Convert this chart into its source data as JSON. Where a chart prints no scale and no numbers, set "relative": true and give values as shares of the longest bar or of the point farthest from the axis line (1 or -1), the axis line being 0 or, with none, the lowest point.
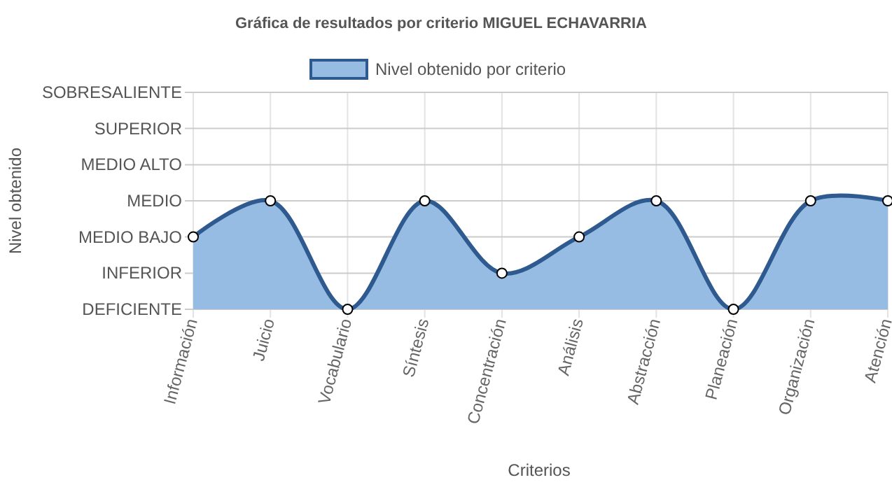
{
  "chart_data": {
    "type": "area",
    "title": "Gráfica de resultados por criterio MIGUEL ECHAVARRIA",
    "xlabel": "Criterios",
    "categories": [
      "Información",
      "Juicio",
      "Vocabulario",
      "Síntesis",
      "Concentración",
      "Análisis",
      "Abstracción",
      "Planeación",
      "Organización",
      "Atención"
    ],
    "relative": true,
    "series": [
      {
        "name": "Nivel obtenido por criterio",
        "color": "#2e5a8f",
        "values": [
          0.667,
          1,
          0,
          1,
          0.333,
          0.667,
          1,
          0,
          1,
          1
        ]
      }
    ],
    "ref_lines": [
      {
        "axis": "y",
        "value": 2,
        "label": "SOBRESALIENTE",
        "color": "#cccccc"
      },
      {
        "axis": "y",
        "value": 1.667,
        "label": "SUPERIOR",
        "color": "#cccccc"
      },
      {
        "axis": "y",
        "value": 1.333,
        "label": "MEDIO ALTO",
        "color": "#cccccc"
      },
      {
        "axis": "y",
        "value": 1,
        "label": "MEDIO",
        "color": "#cccccc"
      },
      {
        "axis": "y",
        "value": 0.667,
        "label": "MEDIO BAJO",
        "color": "#cccccc"
      },
      {
        "axis": "y",
        "value": 0.333,
        "label": "INFERIOR",
        "color": "#cccccc"
      },
      {
        "axis": "y",
        "value": 0,
        "label": "DEFICIENTE",
        "color": "#cccccc"
      }
    ],
    "annotations": [
      "Nivel obtenido"
    ],
    "grid": "x",
    "legend": "top",
    "marker": "circle",
    "line_style": "solid"
  }
}
